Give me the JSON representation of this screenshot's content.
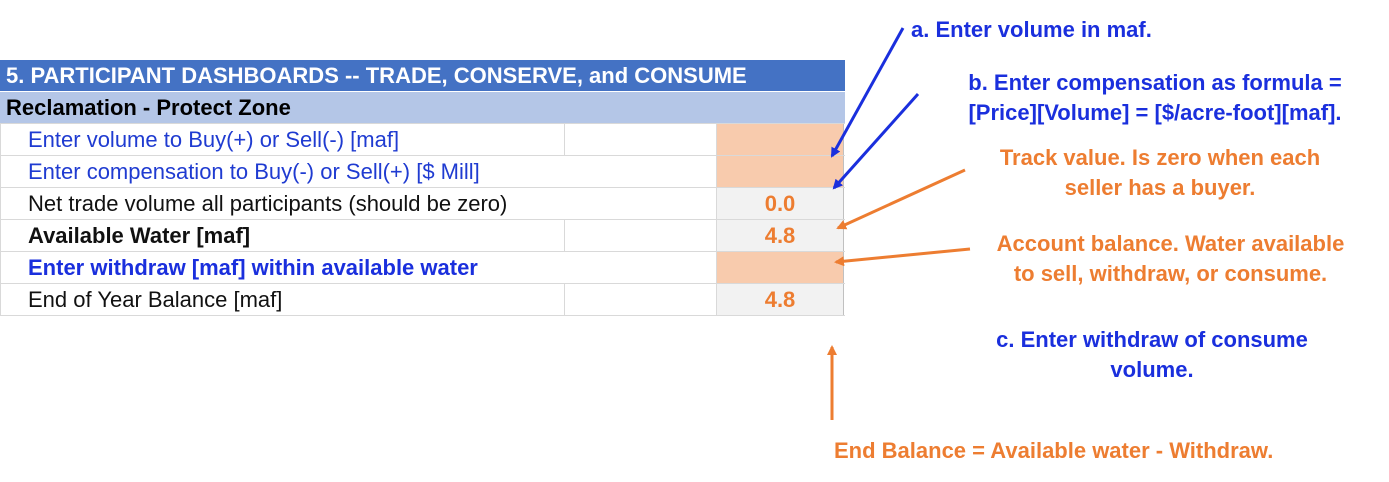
{
  "dashboard": {
    "header": "5. PARTICIPANT DASHBOARDS -- TRADE, CONSERVE, and CONSUME",
    "subheader": "Reclamation - Protect Zone",
    "rows": [
      {
        "label": "Enter volume to Buy(+) or Sell(-) [maf]",
        "value": ""
      },
      {
        "label": "Enter compensation to Buy(-) or Sell(+) [$ Mill]",
        "value": ""
      },
      {
        "label": "Net trade volume all participants (should be zero)",
        "value": "0.0"
      },
      {
        "label": "Available Water [maf]",
        "value": "4.8"
      },
      {
        "label": "Enter withdraw [maf] within available water",
        "value": ""
      },
      {
        "label": "End of Year Balance [maf]",
        "value": "4.8"
      }
    ]
  },
  "annotations": {
    "a": "a. Enter volume in maf.",
    "b_line1": "b. Enter compensation as formula =",
    "b_line2": "[Price][Volume] = [$/acre-foot][maf].",
    "track_line1": "Track value. Is zero when each",
    "track_line2": "seller has a buyer.",
    "account_line1": "Account balance. Water available",
    "account_line2": "to sell, withdraw, or consume.",
    "c_line1": "c. Enter withdraw of consume",
    "c_line2": "volume.",
    "end_balance": "End Balance = Available water - Withdraw."
  },
  "colors": {
    "header_bg": "#4472c4",
    "subheader_bg": "#b4c6e7",
    "input_cell": "#f8cbad",
    "output_value": "#ed7d31",
    "note_blue": "#1a2fdd",
    "note_orange": "#ed7d31"
  }
}
